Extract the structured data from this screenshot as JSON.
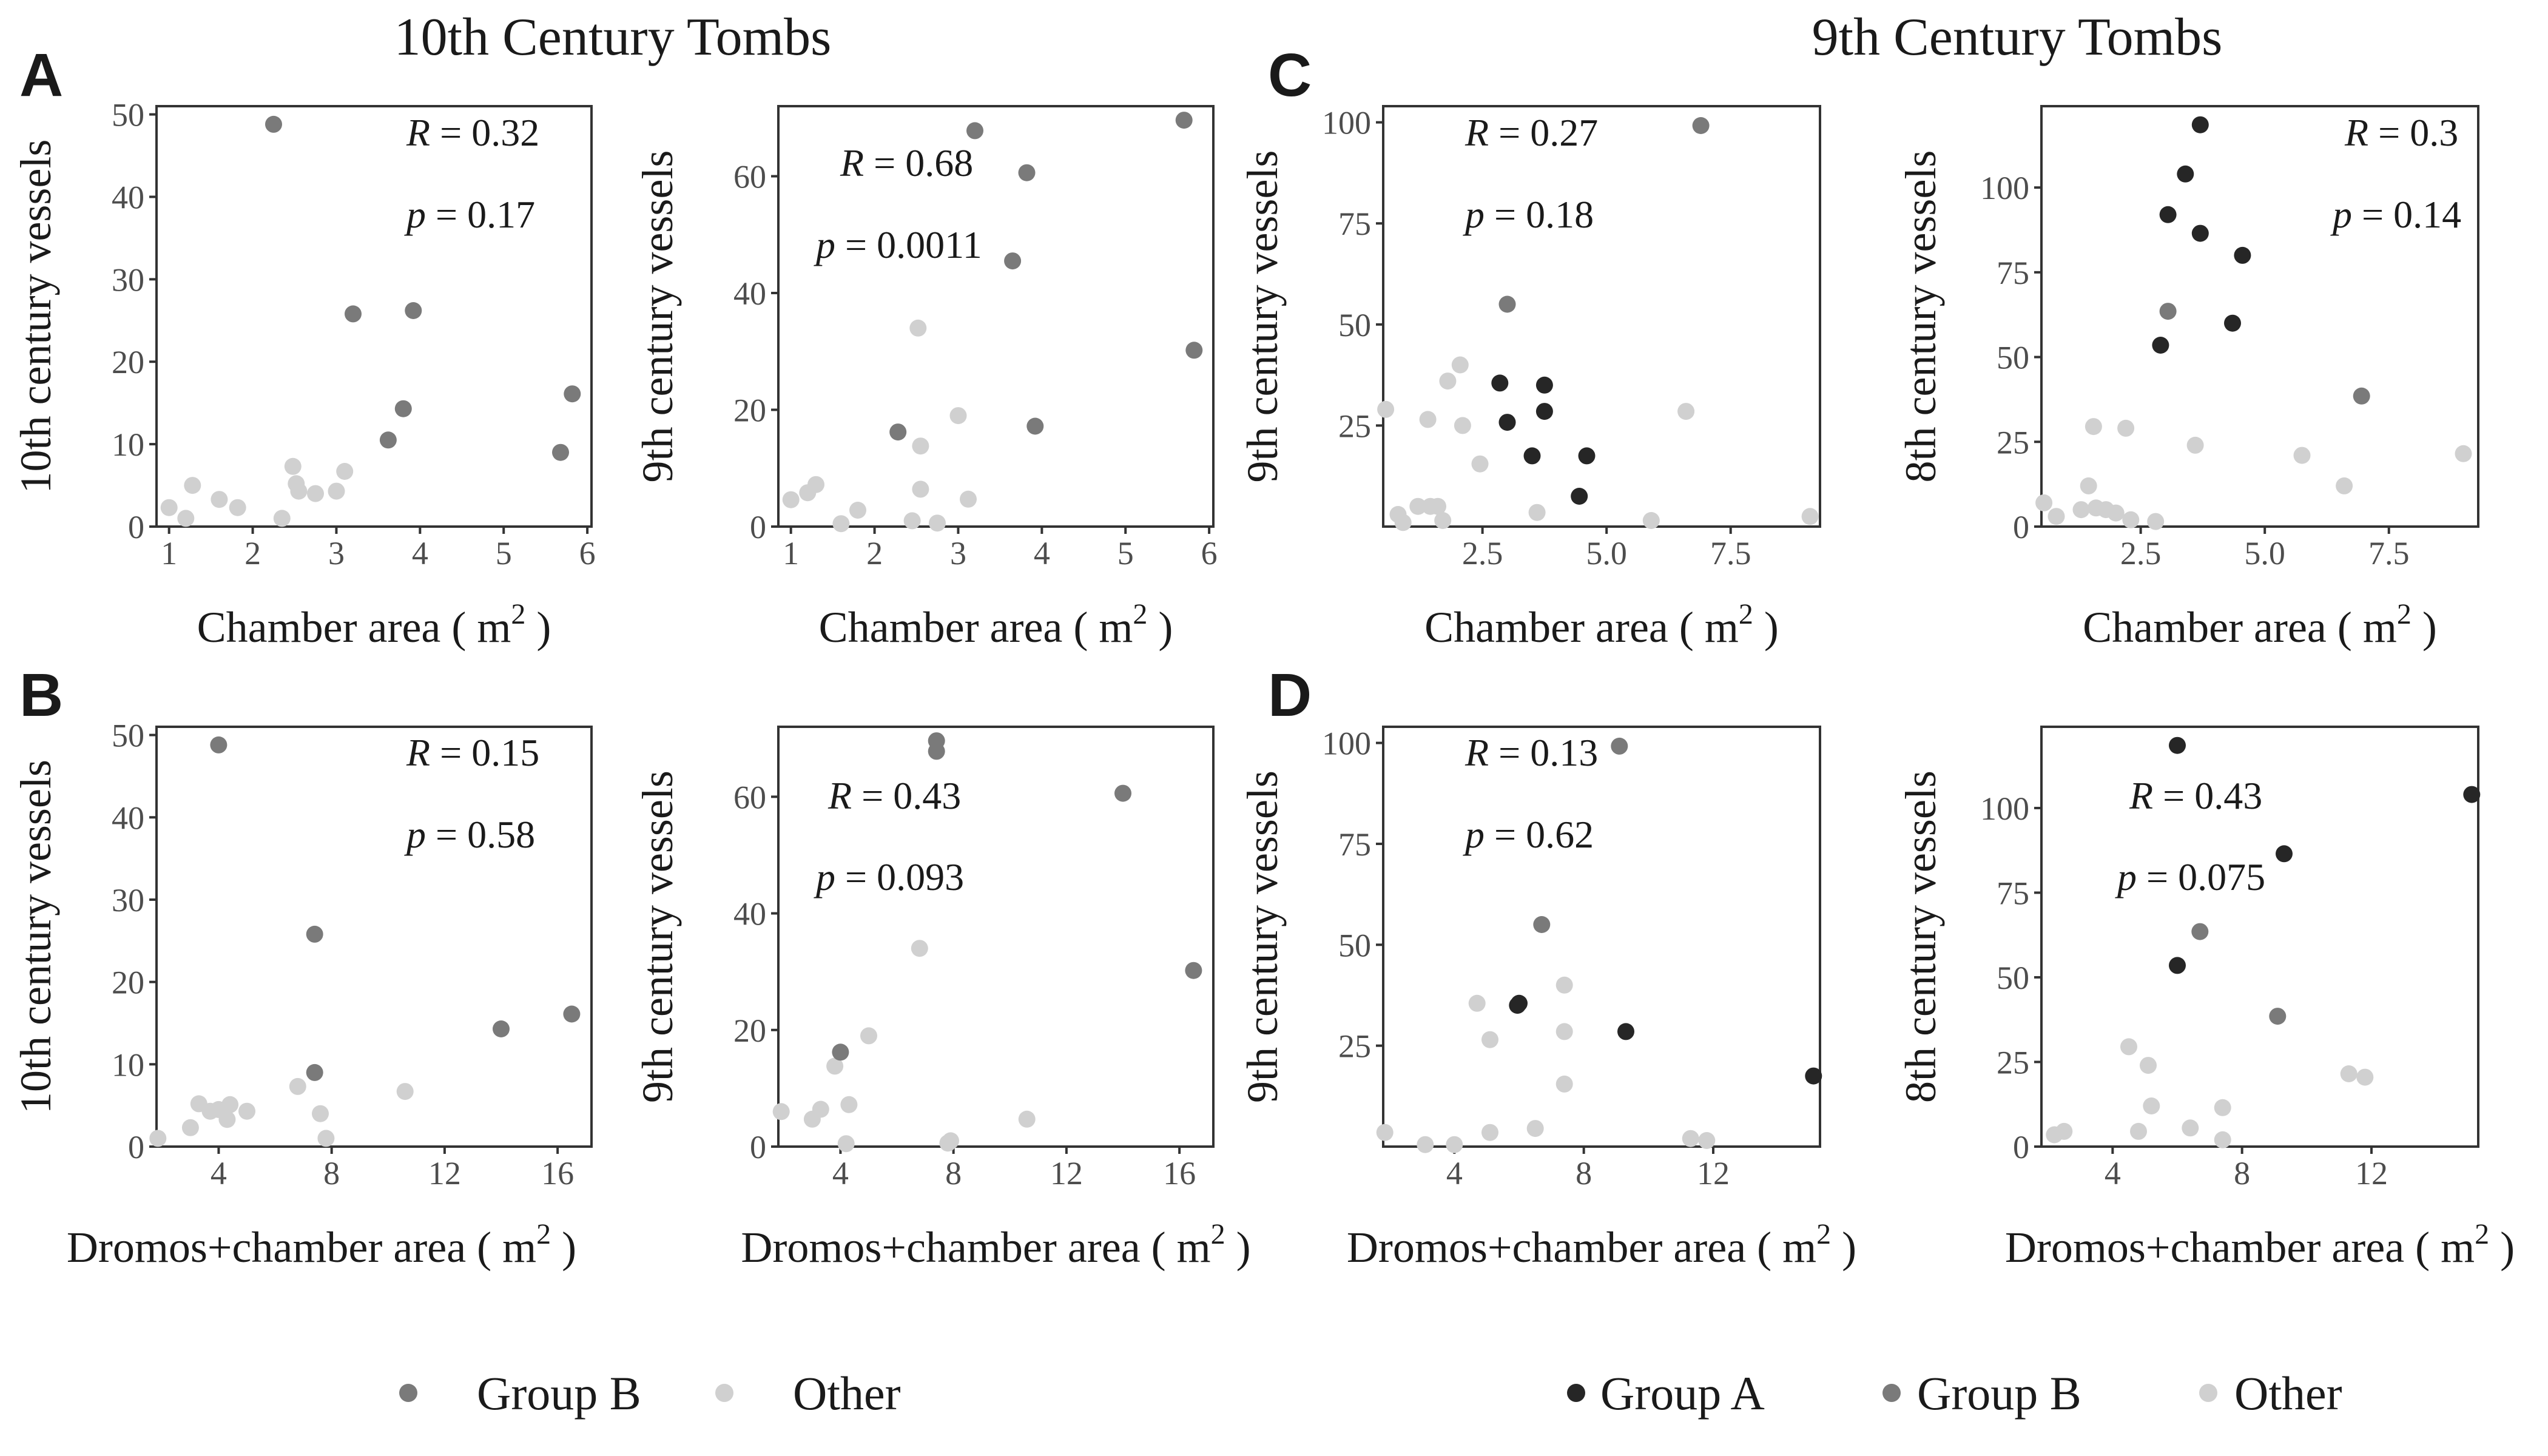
{
  "figure": {
    "section_titles": {
      "left": "10th Century Tombs",
      "right": "9th Century Tombs"
    },
    "panel_letters": [
      "A",
      "B",
      "C",
      "D"
    ],
    "legends": {
      "left": [
        "Group B",
        "Other"
      ],
      "right": [
        "Group A",
        "Group B",
        "Other"
      ]
    },
    "colors": {
      "Group A": "#262626",
      "Group B": "#7a7a7a",
      "Other": "#d0d0d0",
      "axis": "#333333",
      "tick_text": "#4d4d4d"
    }
  },
  "chart_data": [
    {
      "id": "A1",
      "type": "scatter",
      "panel": "A",
      "xlabel": "Chamber area ( m2 )",
      "ylabel": "10th century vessels",
      "xlim": [
        0.85,
        6.05
      ],
      "ylim": [
        0,
        51
      ],
      "xticks": [
        1,
        2,
        3,
        4,
        5,
        6
      ],
      "ytick_values": [
        0,
        10,
        20,
        30,
        40,
        50
      ],
      "stats": [
        "R = 0.32",
        "p = 0.17"
      ],
      "series": [
        {
          "group": "Group B",
          "points": [
            [
              2.25,
              48.8
            ],
            [
              3.2,
              25.8
            ],
            [
              3.92,
              26.2
            ],
            [
              3.8,
              14.3
            ],
            [
              3.62,
              10.5
            ],
            [
              5.68,
              9.0
            ],
            [
              5.82,
              16.1
            ]
          ]
        },
        {
          "group": "Other",
          "points": [
            [
              1.0,
              2.3
            ],
            [
              1.2,
              1.0
            ],
            [
              1.28,
              5.0
            ],
            [
              1.6,
              3.3
            ],
            [
              1.82,
              2.3
            ],
            [
              2.35,
              1.0
            ],
            [
              2.48,
              7.3
            ],
            [
              2.52,
              5.2
            ],
            [
              2.55,
              4.3
            ],
            [
              2.75,
              4.0
            ],
            [
              3.0,
              4.3
            ],
            [
              3.1,
              6.7
            ]
          ]
        }
      ]
    },
    {
      "id": "A2",
      "type": "scatter",
      "panel": "A",
      "xlabel": "Chamber area ( m2 )",
      "ylabel": "9th century vessels",
      "xlim": [
        0.85,
        6.05
      ],
      "ylim": [
        0,
        72
      ],
      "xticks": [
        1,
        2,
        3,
        4,
        5,
        6
      ],
      "ytick_values": [
        0,
        20,
        40,
        60
      ],
      "stats": [
        "R = 0.68",
        "p = 0.0011"
      ],
      "series": [
        {
          "group": "Group B",
          "points": [
            [
              3.2,
              67.8
            ],
            [
              3.82,
              60.6
            ],
            [
              3.65,
              45.5
            ],
            [
              5.7,
              69.6
            ],
            [
              5.82,
              30.2
            ],
            [
              2.28,
              16.2
            ],
            [
              3.92,
              17.2
            ]
          ]
        },
        {
          "group": "Other",
          "points": [
            [
              1.0,
              4.6
            ],
            [
              1.2,
              5.8
            ],
            [
              1.3,
              7.2
            ],
            [
              1.6,
              0.5
            ],
            [
              1.8,
              2.8
            ],
            [
              2.45,
              1.0
            ],
            [
              2.52,
              34.0
            ],
            [
              2.55,
              13.8
            ],
            [
              2.55,
              6.4
            ],
            [
              2.75,
              0.6
            ],
            [
              3.0,
              19.0
            ],
            [
              3.12,
              4.7
            ]
          ]
        }
      ]
    },
    {
      "id": "B1",
      "type": "scatter",
      "panel": "B",
      "xlabel": "Dromos+chamber area ( m2 )",
      "ylabel": "10th century vessels",
      "xlim": [
        1.8,
        17.2
      ],
      "ylim": [
        0,
        51
      ],
      "xticks": [
        4,
        8,
        12,
        16
      ],
      "ytick_values": [
        0,
        10,
        20,
        30,
        40,
        50
      ],
      "stats": [
        "R = 0.15",
        "p = 0.58"
      ],
      "series": [
        {
          "group": "Group B",
          "points": [
            [
              4.0,
              48.8
            ],
            [
              7.4,
              25.8
            ],
            [
              7.4,
              9.0
            ],
            [
              14.0,
              14.3
            ],
            [
              16.5,
              16.1
            ]
          ]
        },
        {
          "group": "Other",
          "points": [
            [
              1.85,
              1.0
            ],
            [
              3.0,
              2.3
            ],
            [
              3.3,
              5.2
            ],
            [
              3.7,
              4.3
            ],
            [
              4.0,
              4.5
            ],
            [
              4.3,
              3.3
            ],
            [
              4.4,
              5.1
            ],
            [
              5.0,
              4.3
            ],
            [
              6.8,
              7.3
            ],
            [
              7.6,
              4.0
            ],
            [
              7.8,
              1.0
            ],
            [
              10.6,
              6.7
            ]
          ]
        }
      ]
    },
    {
      "id": "B2",
      "type": "scatter",
      "panel": "B",
      "xlabel": "Dromos+chamber area ( m2 )",
      "ylabel": "9th century vessels",
      "xlim": [
        1.8,
        17.2
      ],
      "ylim": [
        0,
        72
      ],
      "xticks": [
        4,
        8,
        12,
        16
      ],
      "ytick_values": [
        0,
        20,
        40,
        60
      ],
      "stats": [
        "R = 0.43",
        "p = 0.093"
      ],
      "series": [
        {
          "group": "Group B",
          "points": [
            [
              7.4,
              69.6
            ],
            [
              7.4,
              67.8
            ],
            [
              14.0,
              60.6
            ],
            [
              16.5,
              30.2
            ],
            [
              4.0,
              16.2
            ]
          ]
        },
        {
          "group": "Other",
          "points": [
            [
              1.9,
              6.0
            ],
            [
              3.0,
              4.7
            ],
            [
              3.3,
              6.4
            ],
            [
              3.8,
              13.8
            ],
            [
              4.2,
              0.5
            ],
            [
              4.3,
              7.2
            ],
            [
              5.0,
              19.0
            ],
            [
              6.8,
              34.0
            ],
            [
              7.8,
              0.6
            ],
            [
              7.9,
              1.0
            ],
            [
              10.6,
              4.7
            ]
          ]
        }
      ]
    },
    {
      "id": "C1",
      "type": "scatter",
      "panel": "C",
      "xlabel": "Chamber area ( m2 )",
      "ylabel": "9th century vessels",
      "xlim": [
        0.5,
        9.3
      ],
      "ylim": [
        0,
        104
      ],
      "xticks": [
        2.5,
        5.0,
        7.5
      ],
      "ytick_values": [
        25,
        50,
        75,
        100
      ],
      "stats": [
        "R = 0.27",
        "p = 0.18"
      ],
      "series": [
        {
          "group": "Group A",
          "points": [
            [
              2.85,
              35.5
            ],
            [
              3.0,
              25.8
            ],
            [
              3.75,
              35.0
            ],
            [
              3.75,
              28.5
            ],
            [
              3.5,
              17.5
            ],
            [
              4.6,
              17.5
            ],
            [
              4.45,
              7.5
            ]
          ]
        },
        {
          "group": "Group B",
          "points": [
            [
              3.0,
              55.0
            ],
            [
              6.9,
              99.2
            ]
          ]
        },
        {
          "group": "Other",
          "points": [
            [
              0.55,
              29.0
            ],
            [
              0.8,
              3.0
            ],
            [
              0.9,
              1.0
            ],
            [
              1.2,
              5.0
            ],
            [
              1.4,
              26.5
            ],
            [
              1.45,
              5.0
            ],
            [
              1.6,
              5.0
            ],
            [
              1.7,
              1.5
            ],
            [
              1.8,
              36.0
            ],
            [
              2.05,
              40.0
            ],
            [
              2.1,
              25.0
            ],
            [
              2.45,
              15.5
            ],
            [
              3.6,
              3.5
            ],
            [
              5.9,
              1.5
            ],
            [
              6.6,
              28.5
            ],
            [
              9.1,
              2.5
            ]
          ]
        }
      ]
    },
    {
      "id": "C2",
      "type": "scatter",
      "panel": "C",
      "xlabel": "Chamber area ( m2 )",
      "ylabel": "8th century vessels",
      "xlim": [
        0.5,
        9.3
      ],
      "ylim": [
        0,
        124
      ],
      "xticks": [
        2.5,
        5.0,
        7.5
      ],
      "ytick_values": [
        0,
        25,
        50,
        75,
        100
      ],
      "stats": [
        "R = 0.3",
        "p = 0.14"
      ],
      "series": [
        {
          "group": "Group A",
          "points": [
            [
              3.7,
              118.5
            ],
            [
              3.4,
              104.0
            ],
            [
              3.05,
              92.0
            ],
            [
              3.7,
              86.5
            ],
            [
              4.55,
              80.0
            ],
            [
              2.9,
              53.5
            ],
            [
              4.35,
              60.0
            ]
          ]
        },
        {
          "group": "Group B",
          "points": [
            [
              3.05,
              63.5
            ],
            [
              6.95,
              38.5
            ]
          ]
        },
        {
          "group": "Other",
          "points": [
            [
              0.55,
              7.0
            ],
            [
              0.8,
              3.0
            ],
            [
              1.3,
              5.0
            ],
            [
              1.45,
              12.0
            ],
            [
              1.55,
              29.5
            ],
            [
              1.6,
              5.5
            ],
            [
              1.8,
              5.0
            ],
            [
              2.0,
              4.0
            ],
            [
              2.2,
              29.0
            ],
            [
              2.3,
              2.0
            ],
            [
              2.8,
              1.5
            ],
            [
              3.6,
              24.0
            ],
            [
              5.75,
              21.0
            ],
            [
              6.6,
              12.0
            ],
            [
              9.0,
              21.5
            ]
          ]
        }
      ]
    },
    {
      "id": "D1",
      "type": "scatter",
      "panel": "D",
      "xlabel": "Dromos+chamber area ( m2 )",
      "ylabel": "9th century vessels",
      "xlim": [
        1.8,
        15.3
      ],
      "ylim": [
        0,
        104
      ],
      "xticks": [
        4,
        8,
        12
      ],
      "ytick_values": [
        25,
        50,
        75,
        100
      ],
      "stats": [
        "R = 0.13",
        "p = 0.62"
      ],
      "series": [
        {
          "group": "Group A",
          "points": [
            [
              5.95,
              35.0
            ],
            [
              6.0,
              35.5
            ],
            [
              9.3,
              28.5
            ],
            [
              15.1,
              17.5
            ]
          ]
        },
        {
          "group": "Group B",
          "points": [
            [
              6.7,
              55.0
            ],
            [
              9.1,
              99.2
            ]
          ]
        },
        {
          "group": "Other",
          "points": [
            [
              1.85,
              3.5
            ],
            [
              3.1,
              0.5
            ],
            [
              4.0,
              0.5
            ],
            [
              4.7,
              35.5
            ],
            [
              5.1,
              26.5
            ],
            [
              5.1,
              3.5
            ],
            [
              6.5,
              4.5
            ],
            [
              7.4,
              40.0
            ],
            [
              7.4,
              28.5
            ],
            [
              7.4,
              15.5
            ],
            [
              11.3,
              2.0
            ],
            [
              11.8,
              1.5
            ]
          ]
        }
      ]
    },
    {
      "id": "D2",
      "type": "scatter",
      "panel": "D",
      "xlabel": "Dromos+chamber area ( m2 )",
      "ylabel": "8th century vessels",
      "xlim": [
        1.8,
        15.3
      ],
      "ylim": [
        0,
        124
      ],
      "xticks": [
        4,
        8,
        12
      ],
      "ytick_values": [
        0,
        25,
        50,
        75,
        100
      ],
      "stats": [
        "R = 0.43",
        "p = 0.075"
      ],
      "series": [
        {
          "group": "Group A",
          "points": [
            [
              6.0,
              118.5
            ],
            [
              15.1,
              104.0
            ],
            [
              9.3,
              86.5
            ],
            [
              6.0,
              53.5
            ]
          ]
        },
        {
          "group": "Group B",
          "points": [
            [
              6.7,
              63.5
            ],
            [
              9.1,
              38.5
            ]
          ]
        },
        {
          "group": "Other",
          "points": [
            [
              2.2,
              3.5
            ],
            [
              2.5,
              4.5
            ],
            [
              4.5,
              29.5
            ],
            [
              4.8,
              4.5
            ],
            [
              5.1,
              24.0
            ],
            [
              5.2,
              12.0
            ],
            [
              6.4,
              5.5
            ],
            [
              7.4,
              11.5
            ],
            [
              7.4,
              2.0
            ],
            [
              11.3,
              21.5
            ],
            [
              11.8,
              20.5
            ]
          ]
        }
      ]
    }
  ]
}
